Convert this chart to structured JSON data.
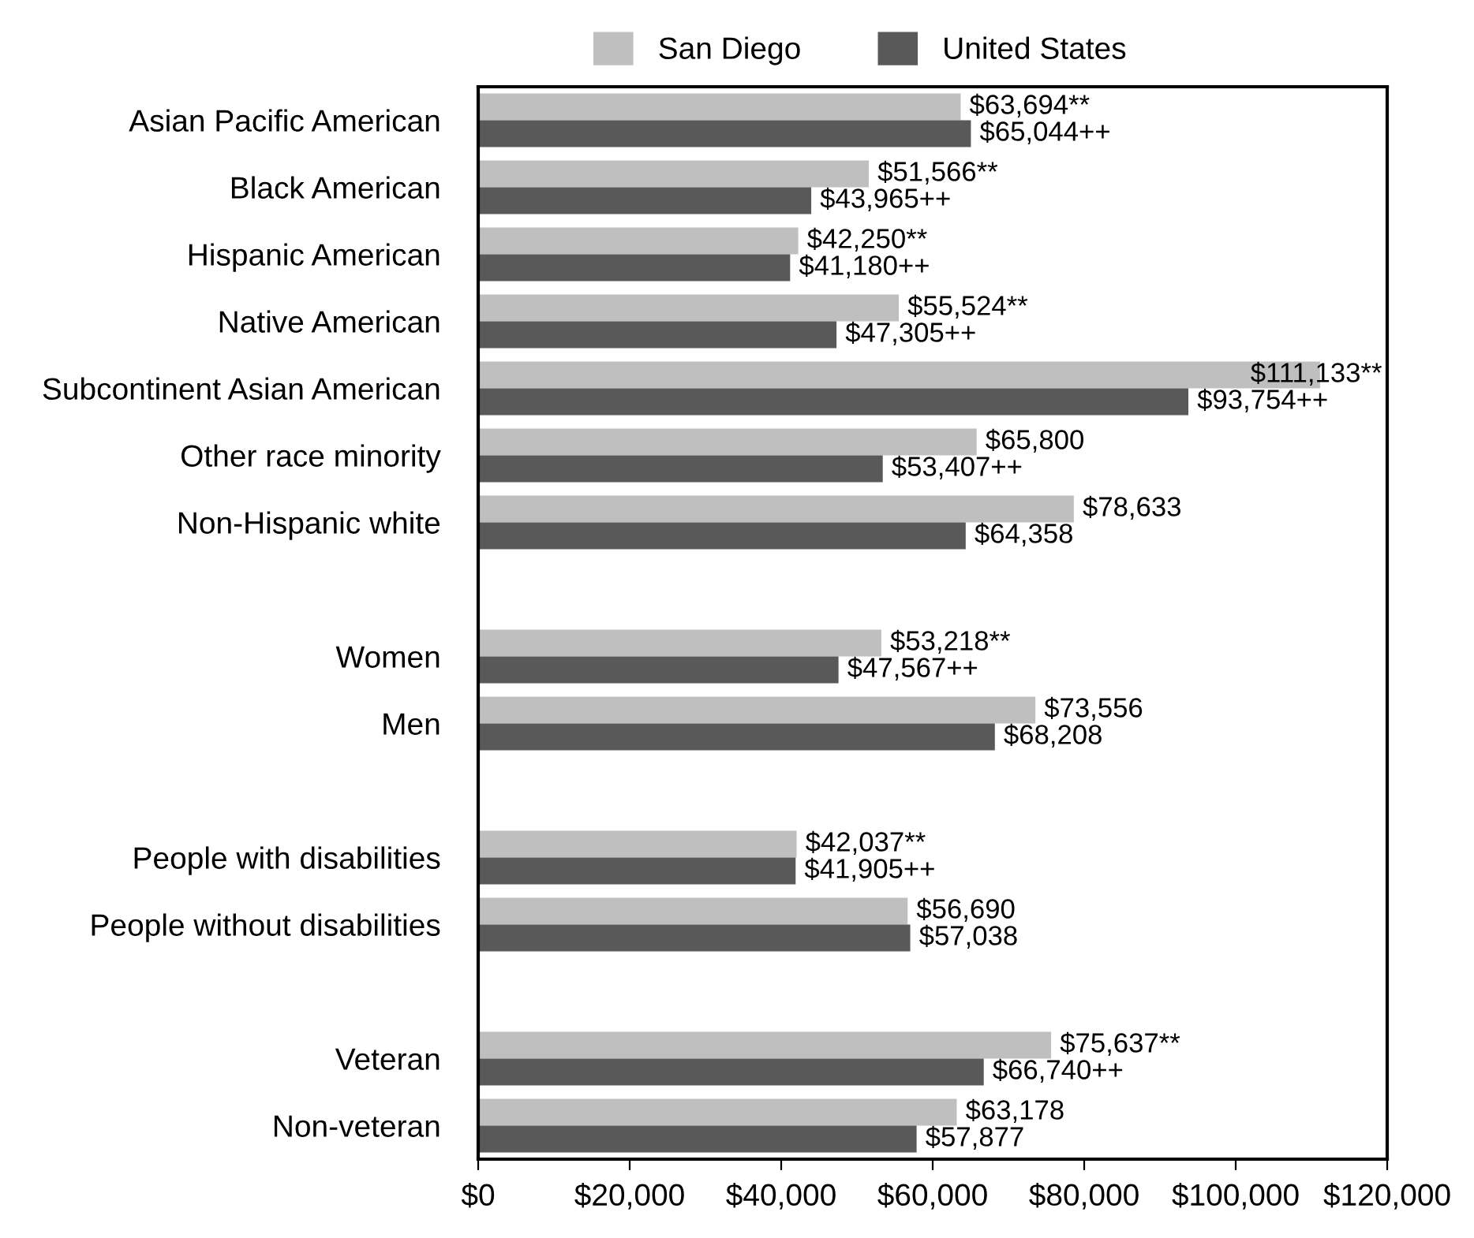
{
  "chart_data": {
    "type": "bar",
    "orientation": "horizontal",
    "categories": [
      "Asian Pacific American",
      "Black American",
      "Hispanic American",
      "Native American",
      "Subcontinent Asian American",
      "Other race minority",
      "Non-Hispanic white",
      null,
      "Women",
      "Men",
      null,
      "People with disabilities",
      "People without disabilities",
      null,
      "Veteran",
      "Non-veteran"
    ],
    "series": [
      {
        "name": "San Diego",
        "color": "#bfbfbf",
        "values": [
          63694,
          51566,
          42250,
          55524,
          111133,
          65800,
          78633,
          null,
          53218,
          73556,
          null,
          42037,
          56690,
          null,
          75637,
          63178
        ],
        "value_labels": [
          "$63,694**",
          "$51,566**",
          "$42,250**",
          "$55,524**",
          "$111,133**",
          "$65,800",
          "$78,633",
          null,
          "$53,218**",
          "$73,556",
          null,
          "$42,037**",
          "$56,690",
          null,
          "$75,637**",
          "$63,178"
        ]
      },
      {
        "name": "United States",
        "color": "#595959",
        "values": [
          65044,
          43965,
          41180,
          47305,
          93754,
          53407,
          64358,
          null,
          47567,
          68208,
          null,
          41905,
          57038,
          null,
          66740,
          57877
        ],
        "value_labels": [
          "$65,044++",
          "$43,965++",
          "$41,180++",
          "$47,305++",
          "$93,754++",
          "$53,407++",
          "$64,358",
          null,
          "$47,567++",
          "$68,208",
          null,
          "$41,905++",
          "$57,038",
          null,
          "$66,740++",
          "$57,877"
        ]
      }
    ],
    "xlim": [
      0,
      120000
    ],
    "xticks": [
      {
        "value": 0,
        "label": "$0"
      },
      {
        "value": 20000,
        "label": "$20,000"
      },
      {
        "value": 40000,
        "label": "$40,000"
      },
      {
        "value": 60000,
        "label": "$60,000"
      },
      {
        "value": 80000,
        "label": "$80,000"
      },
      {
        "value": 100000,
        "label": "$100,000"
      },
      {
        "value": 120000,
        "label": "$120,000"
      }
    ],
    "legend": "top"
  }
}
